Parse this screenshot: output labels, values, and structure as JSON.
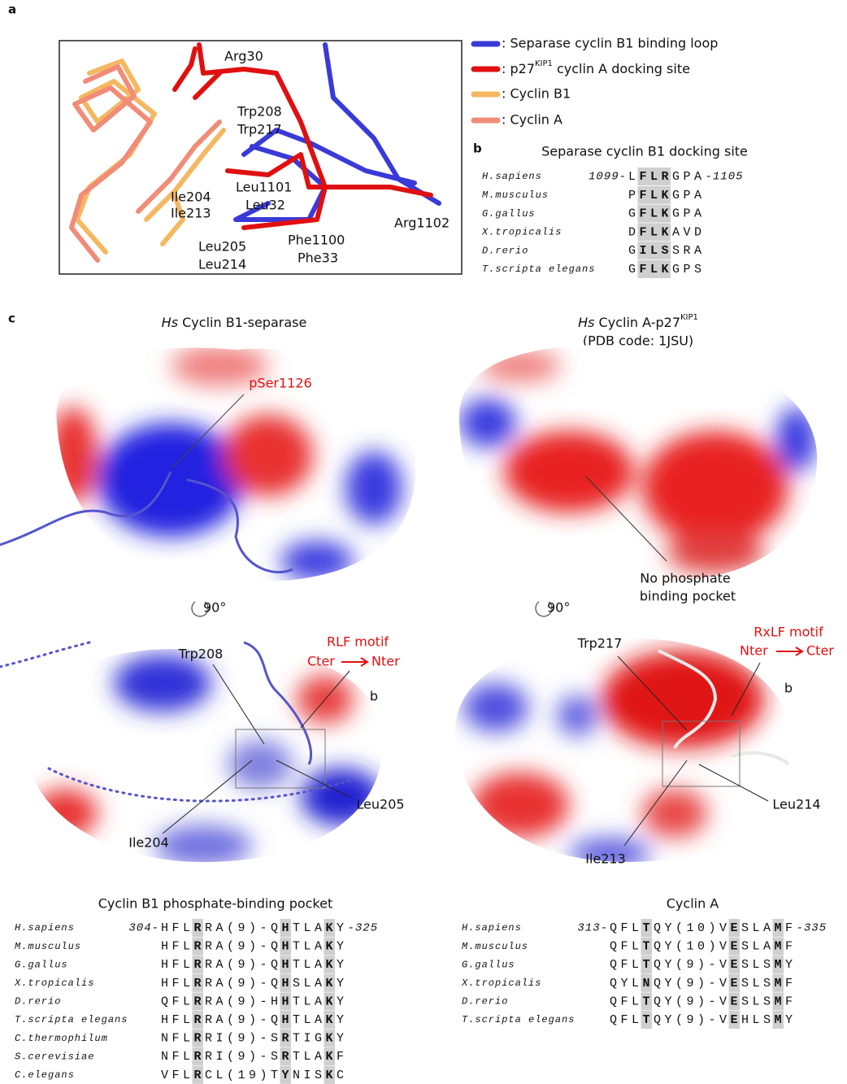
{
  "panel_labels": [
    "a",
    "b",
    "c"
  ],
  "legend": [
    {
      "color": "#3a3ad8",
      "text": ": Separase cyclin B1 binding loop"
    },
    {
      "color": "#e01010",
      "text": ": p27",
      "sup": "KIP1",
      "text2": " cyclin A docking site"
    },
    {
      "color": "#f5b860",
      "text": ": Cyclin B1"
    },
    {
      "color": "#f08c78",
      "text": ": Cyclin A"
    }
  ],
  "panel_a_labels": [
    {
      "text": "Arg30",
      "color": "#e01010"
    },
    {
      "text": "Trp208",
      "color": "#f0b060"
    },
    {
      "text": "Trp217",
      "color": "#ec8878"
    },
    {
      "text": "Ile204",
      "color": "#f0b060"
    },
    {
      "text": "Ile213",
      "color": "#ec8878"
    },
    {
      "text": "Leu1101",
      "color": "#4a4ad0"
    },
    {
      "text": "Leu32",
      "color": "#e01010"
    },
    {
      "text": "Leu205",
      "color": "#f0b060"
    },
    {
      "text": "Leu214",
      "color": "#ec8878"
    },
    {
      "text": "Phe1100",
      "color": "#4a4ad0"
    },
    {
      "text": "Phe33",
      "color": "#e01010"
    },
    {
      "text": "Arg1102",
      "color": "#4a4ad0"
    }
  ],
  "panel_b": {
    "title": "Separase cyclin B1 docking site",
    "rows": [
      {
        "species": "H.sapiens",
        "start": "1099-",
        "segments": [
          "L",
          "FLR",
          "GPA"
        ],
        "end": "-1105"
      },
      {
        "species": "M.musculus",
        "segments": [
          "P",
          "FLK",
          "GPA"
        ]
      },
      {
        "species": "G.gallus",
        "segments": [
          "G",
          "FLK",
          "GPA"
        ]
      },
      {
        "species": "X.tropicalis",
        "segments": [
          "D",
          "FLK",
          "AVD"
        ]
      },
      {
        "species": "D.rerio",
        "segments": [
          "G",
          "ILS",
          "SRA"
        ]
      },
      {
        "species": "T.scripta elegans",
        "segments": [
          "G",
          "FLK",
          "GPS"
        ]
      }
    ]
  },
  "panel_c": {
    "left_title": {
      "italic": "Hs",
      "text": " Cyclin B1-separase"
    },
    "right_title": {
      "italic": "Hs",
      "text": " Cyclin A-p27",
      "sup": "KIP1",
      "line2": "(PDB code: 1JSU)"
    },
    "pser": "pSer1126",
    "no_pocket": [
      "No phosphate",
      "binding pocket"
    ],
    "rotation": "90°",
    "left_bottom": {
      "motif": "RLF motif",
      "from": "Cter",
      "to": "Nter",
      "trp": "Trp208",
      "box": "b",
      "leu": "Leu205",
      "ile": "Ile204"
    },
    "right_bottom": {
      "motif": "RxLF motif",
      "from": "Nter",
      "to": "Cter",
      "trp": "Trp217",
      "box": "b",
      "leu": "Leu214",
      "ile": "Ile213"
    }
  },
  "alignment_b1": {
    "title": "Cyclin B1 phosphate-binding pocket",
    "rows": [
      {
        "species": "H.sapiens",
        "start": "304-",
        "segments": [
          "HFL",
          "R",
          "RA(9)-Q",
          "H",
          "TLA",
          "K",
          "Y"
        ],
        "end": "-325"
      },
      {
        "species": "M.musculus",
        "segments": [
          "HFL",
          "R",
          "RA(9)-Q",
          "H",
          "TLA",
          "K",
          "Y"
        ]
      },
      {
        "species": "G.gallus",
        "segments": [
          "HFL",
          "R",
          "RA(9)-Q",
          "H",
          "TLA",
          "K",
          "Y"
        ]
      },
      {
        "species": "X.tropicalis",
        "segments": [
          "HFL",
          "R",
          "RA(9)-Q",
          "H",
          "SLA",
          "K",
          "Y"
        ]
      },
      {
        "species": "D.rerio",
        "segments": [
          "QFL",
          "R",
          "RA(9)-H",
          "H",
          "TLA",
          "K",
          "Y"
        ]
      },
      {
        "species": "T.scripta elegans",
        "segments": [
          "HFL",
          "R",
          "RA(9)-Q",
          "H",
          "TLA",
          "K",
          "Y"
        ]
      },
      {
        "species": "C.thermophilum",
        "segments": [
          "NFL",
          "R",
          "RI(9)-S",
          "R",
          "TIG",
          "K",
          "Y"
        ]
      },
      {
        "species": "S.cerevisiae",
        "segments": [
          "NFL",
          "R",
          "RI(9)-S",
          "R",
          "TLA",
          "K",
          "F"
        ]
      },
      {
        "species": "C.elegans",
        "segments": [
          "VFL",
          "R",
          "CL(19)T",
          "Y",
          "NIS",
          "K",
          "C"
        ]
      }
    ]
  },
  "alignment_a": {
    "title": "Cyclin A",
    "rows": [
      {
        "species": "H.sapiens",
        "start": "313-",
        "segments": [
          "QFL",
          "T",
          "QY(10)V",
          "E",
          "SLA",
          "M",
          "F"
        ],
        "end": "-335"
      },
      {
        "species": "M.musculus",
        "segments": [
          "QFL",
          "T",
          "QY(10)V",
          "E",
          "SLA",
          "M",
          "F"
        ]
      },
      {
        "species": "G.gallus",
        "segments": [
          "QFL",
          "T",
          "QY(9)-V",
          "E",
          "SLS",
          "M",
          "Y"
        ]
      },
      {
        "species": "X.tropicalis",
        "segments": [
          "QYL",
          "N",
          "QY(9)-V",
          "E",
          "SLS",
          "M",
          "F"
        ]
      },
      {
        "species": "D.rerio",
        "segments": [
          "QFL",
          "T",
          "QY(9)-V",
          "E",
          "SLS",
          "M",
          "F"
        ]
      },
      {
        "species": "T.scripta elegans",
        "segments": [
          "QFL",
          "T",
          "QY(9)-V",
          "E",
          "HLS",
          "M",
          "Y"
        ]
      }
    ]
  }
}
